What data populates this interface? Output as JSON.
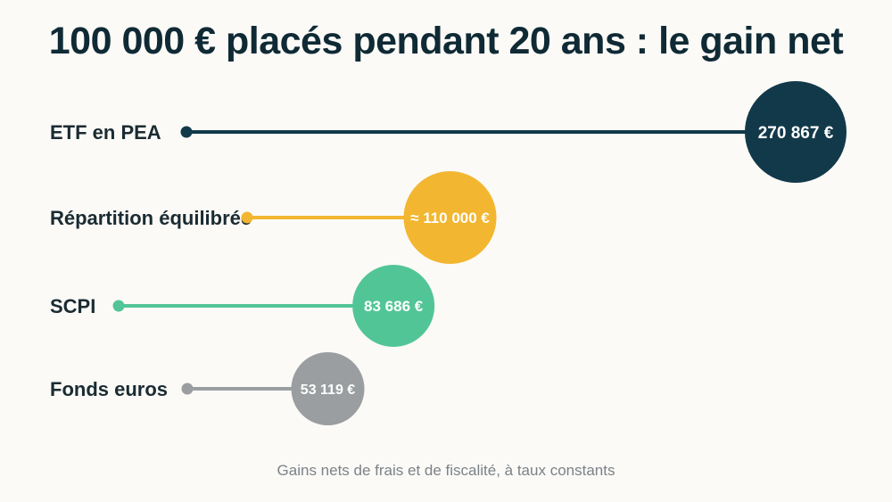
{
  "chart_data": {
    "type": "bar",
    "title": "100 000 € placés pendant 20 ans : le gain net",
    "subtitle": "Gains nets de frais et de fiscalité, à taux constants",
    "categories": [
      "ETF en PEA",
      "Répartition équilibrée",
      "SCPI",
      "Fonds euros"
    ],
    "values": [
      270867,
      110000,
      83686,
      53119
    ],
    "value_labels": [
      "270 867 €",
      "≈ 110 000 €",
      "83 686 €",
      "53 119 €"
    ],
    "colors": [
      "#12394a",
      "#f2b630",
      "#52c596",
      "#9a9ea0"
    ],
    "orientation": "horizontal",
    "grid": false,
    "legend": "none"
  }
}
